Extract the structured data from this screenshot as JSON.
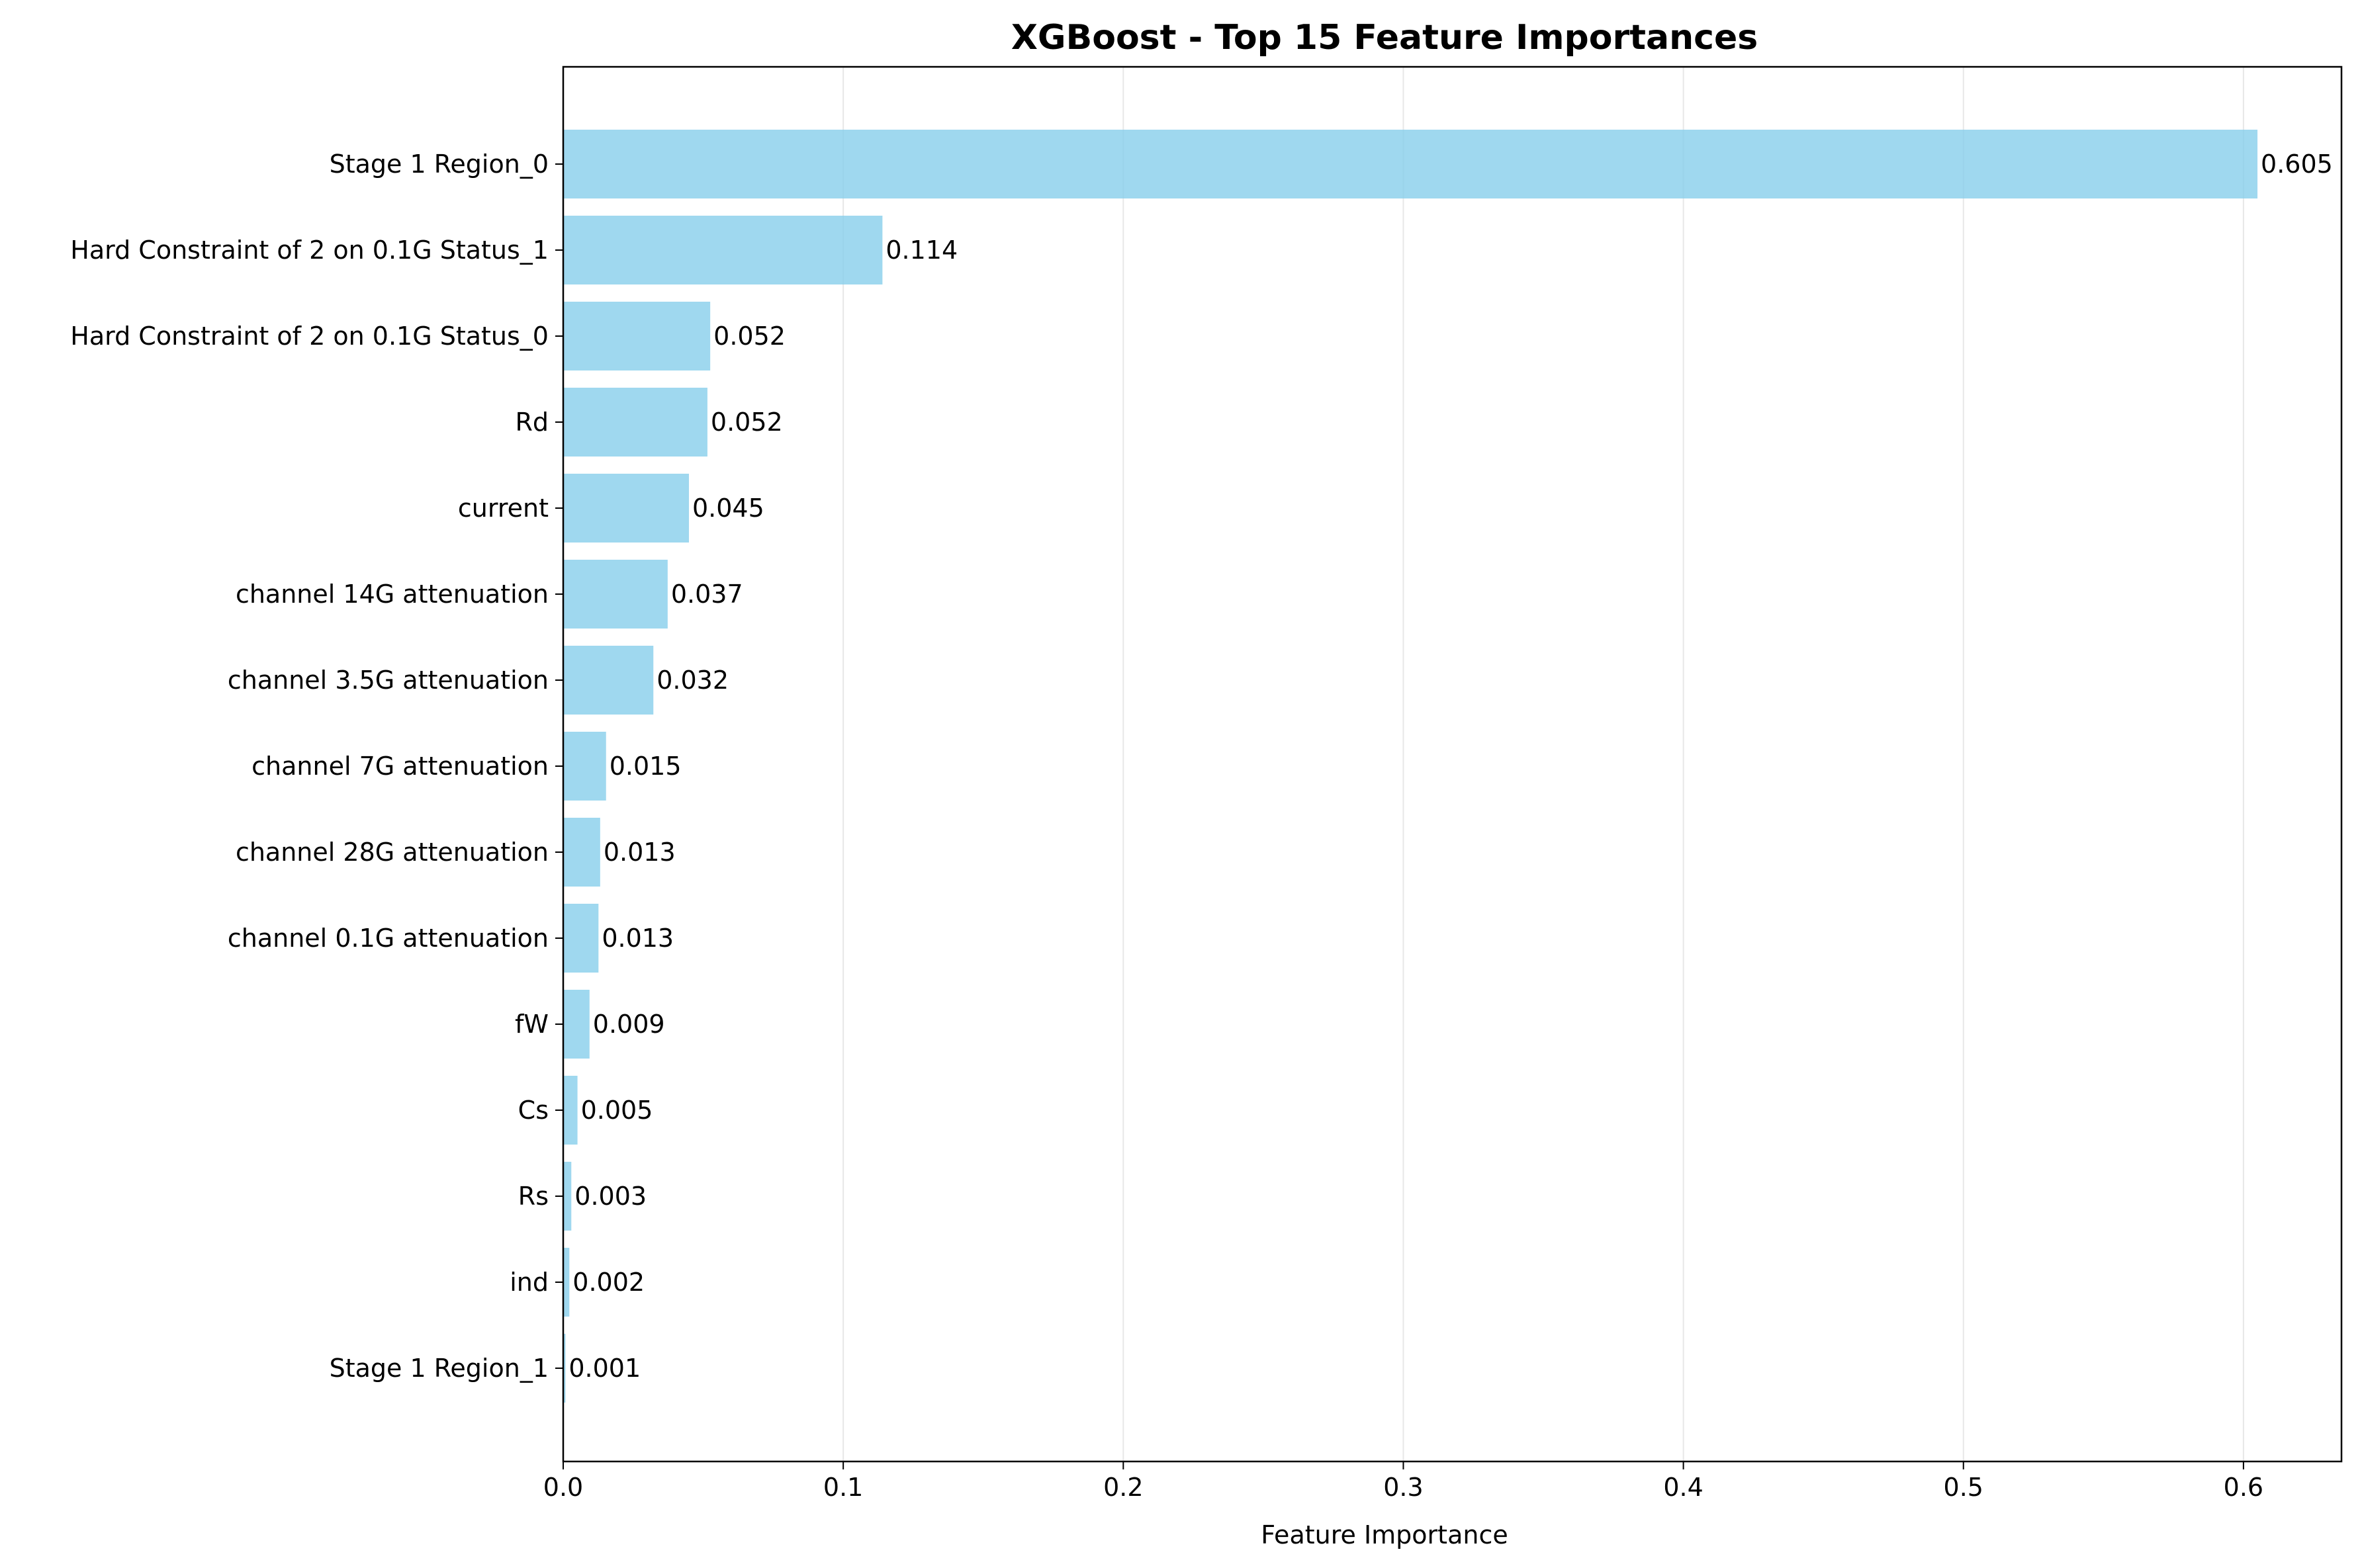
{
  "chart_data": {
    "type": "bar",
    "orientation": "horizontal",
    "title": "XGBoost - Top 15 Feature Importances",
    "xlabel": "Feature Importance",
    "ylabel": "",
    "xlim": [
      0,
      0.635
    ],
    "xticks": [
      0.0,
      0.1,
      0.2,
      0.3,
      0.4,
      0.5,
      0.6
    ],
    "xtick_labels": [
      "0.0",
      "0.1",
      "0.2",
      "0.3",
      "0.4",
      "0.5",
      "0.6"
    ],
    "grid": "x",
    "bar_color": "#87ceeb",
    "categories": [
      "Stage 1 Region_0",
      "Hard Constraint of 2 on 0.1G Status_1",
      "Hard Constraint of 2 on 0.1G Status_0",
      "Rd",
      "current",
      "channel 14G attenuation",
      "channel 3.5G attenuation",
      "channel 7G attenuation",
      "channel 28G attenuation",
      "channel 0.1G attenuation",
      "fW",
      "Cs",
      "Rs",
      "ind",
      "Stage 1 Region_1"
    ],
    "values": [
      0.605,
      0.114,
      0.0525,
      0.0515,
      0.0449,
      0.0373,
      0.0322,
      0.0153,
      0.0132,
      0.0126,
      0.0094,
      0.0051,
      0.0029,
      0.0022,
      0.0008
    ],
    "data_labels": [
      "0.605",
      "0.114",
      "0.052",
      "0.052",
      "0.045",
      "0.037",
      "0.032",
      "0.015",
      "0.013",
      "0.013",
      "0.009",
      "0.005",
      "0.003",
      "0.002",
      "0.001"
    ]
  }
}
